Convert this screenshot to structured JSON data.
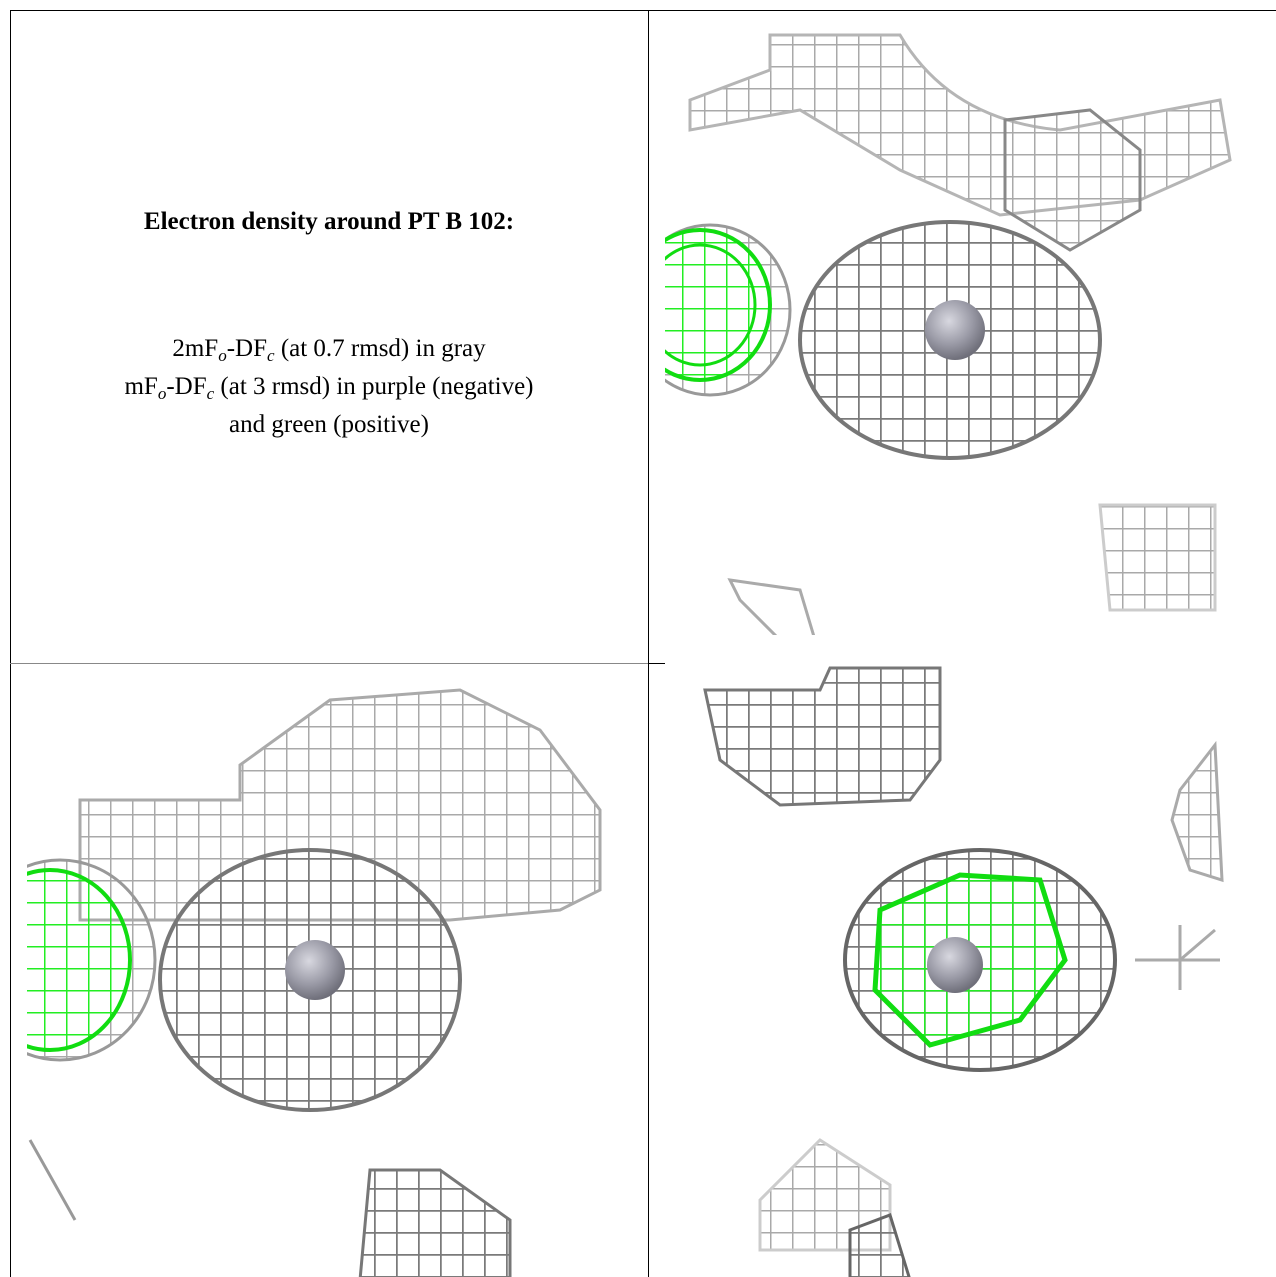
{
  "title": "Electron density around PT B 102:",
  "legend_lines": [
    [
      "2mF",
      "o",
      "-DF",
      "c",
      " (at 0.7 rmsd) in gray"
    ],
    [
      "mF",
      "o",
      "-DF",
      "c",
      " (at 3 rmsd) in purple (negative)"
    ],
    [
      "and green (positive)"
    ]
  ]
}
